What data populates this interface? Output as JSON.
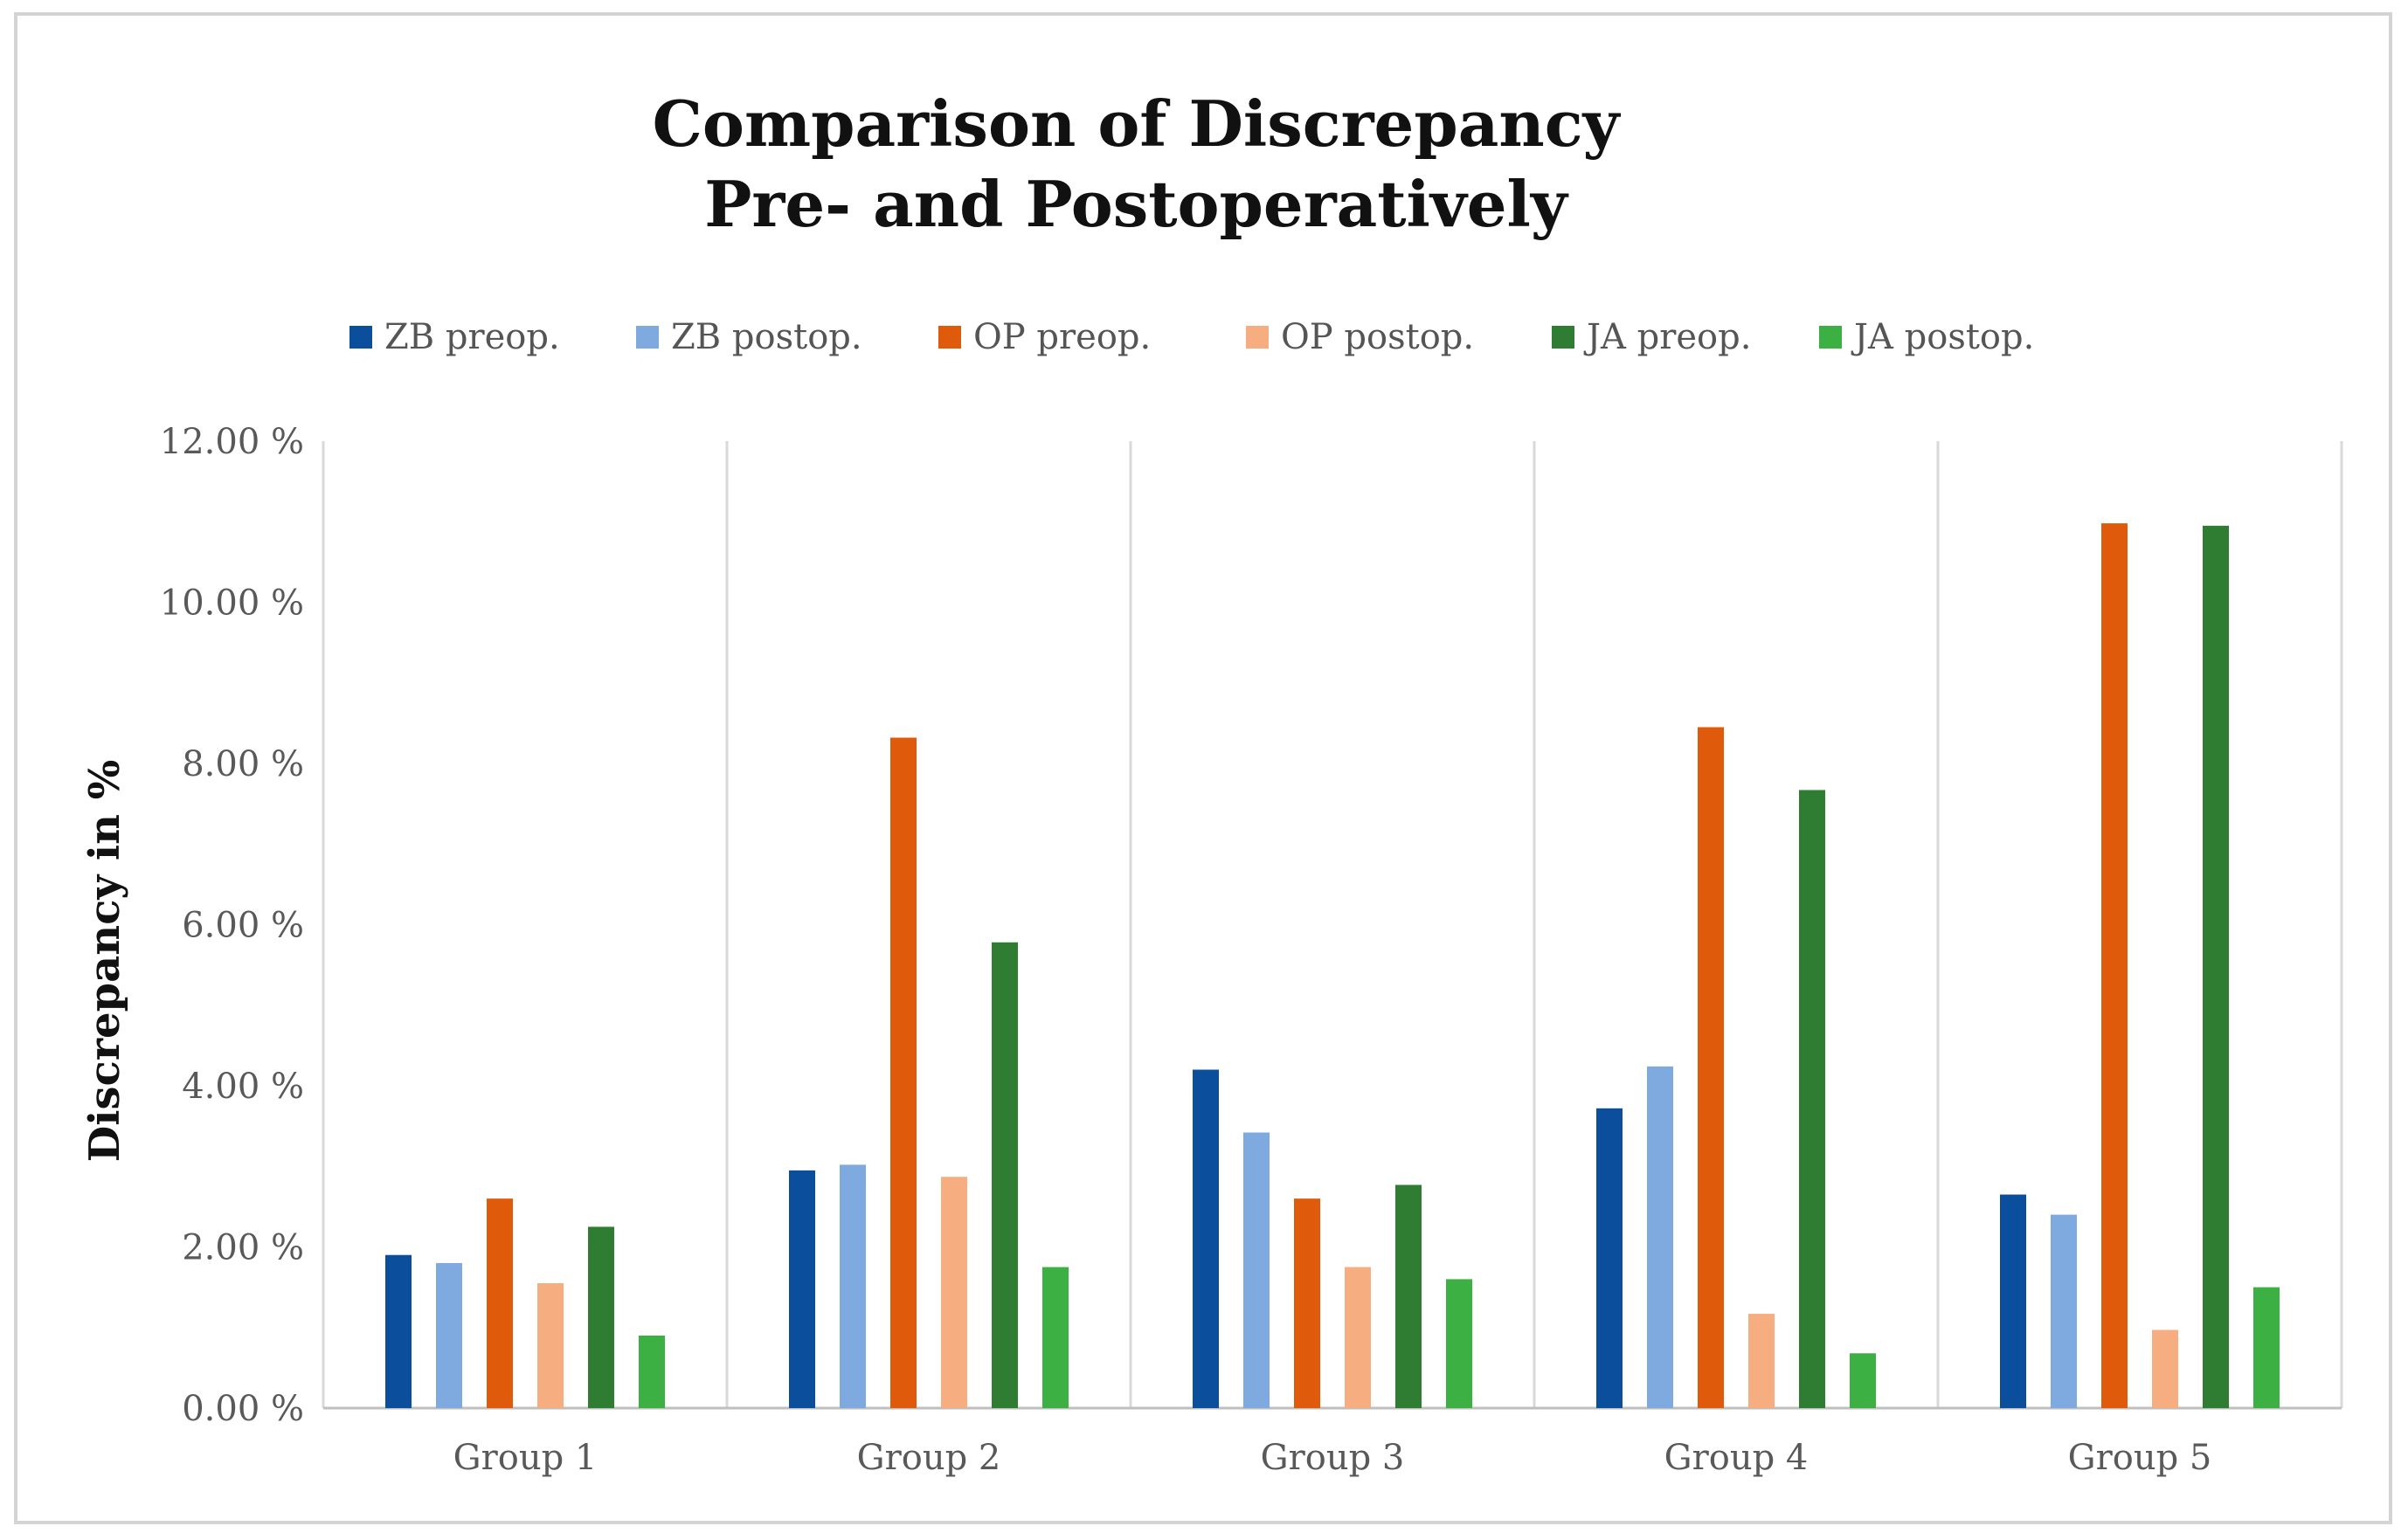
{
  "chart_data": {
    "type": "bar",
    "title_lines": [
      "Comparison of Discrepancy",
      "Pre- and Postoperatively"
    ],
    "xlabel": "",
    "ylabel": "Discrepancy in %",
    "ylim": [
      0,
      12
    ],
    "y_ticks": [
      0,
      2,
      4,
      6,
      8,
      10,
      12
    ],
    "y_tick_labels": [
      "0.00 %",
      "2.00 %",
      "4.00 %",
      "6.00 %",
      "8.00 %",
      "10.00 %",
      "12.00 %"
    ],
    "categories": [
      "Group 1",
      "Group 2",
      "Group 3",
      "Group 4",
      "Group 5"
    ],
    "legend_position": "top",
    "series": [
      {
        "name": "ZB preop.",
        "color": "#0b4f9c",
        "values": [
          1.9,
          2.95,
          4.2,
          3.72,
          2.65
        ]
      },
      {
        "name": "ZB postop.",
        "color": "#7faadf",
        "values": [
          1.8,
          3.02,
          3.42,
          4.24,
          2.4
        ]
      },
      {
        "name": "OP preop.",
        "color": "#e05a0c",
        "values": [
          2.6,
          8.32,
          2.6,
          8.45,
          10.98
        ]
      },
      {
        "name": "OP postop.",
        "color": "#f6ad7f",
        "values": [
          1.55,
          2.87,
          1.75,
          1.17,
          0.97
        ]
      },
      {
        "name": "JA preop.",
        "color": "#2e7d32",
        "values": [
          2.25,
          5.78,
          2.77,
          7.67,
          10.95
        ]
      },
      {
        "name": "JA postop.",
        "color": "#3cb043",
        "values": [
          0.9,
          1.75,
          1.6,
          0.68,
          1.5
        ]
      }
    ]
  }
}
